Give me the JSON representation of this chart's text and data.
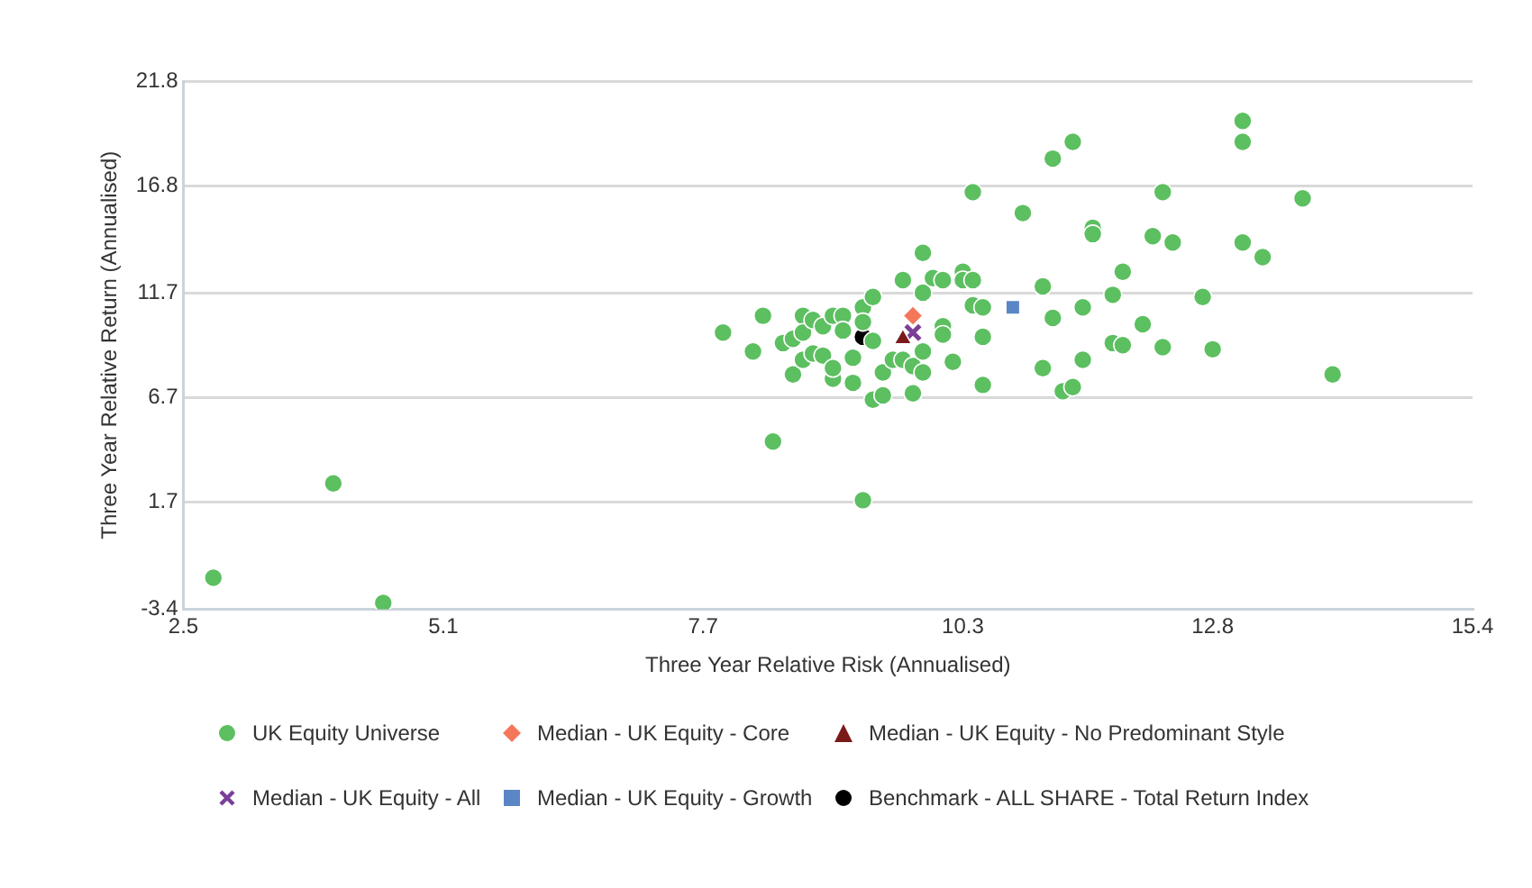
{
  "chart_data": {
    "type": "scatter",
    "xlabel": "Three Year Relative Risk (Annualised)",
    "ylabel": "Three Year Relative Return (Annualised)",
    "xlim": [
      2.5,
      15.4
    ],
    "xticks": [
      2.5,
      5.1,
      7.7,
      10.3,
      12.8,
      15.4
    ],
    "ylim": [
      -3.4,
      21.8
    ],
    "yticks": [
      -3.4,
      1.7,
      6.7,
      11.7,
      16.8,
      21.8
    ],
    "grid": "y",
    "legend": "bottom",
    "series": [
      {
        "name": "UK Equity Universe",
        "color": "#5cbf60",
        "marker": "circle",
        "x": [
          2.8,
          4.0,
          4.5,
          8.4,
          9.3,
          14.0,
          7.9,
          8.2,
          8.3,
          8.5,
          8.6,
          8.6,
          8.7,
          8.7,
          8.7,
          8.8,
          8.8,
          8.9,
          8.9,
          9.0,
          9.0,
          9.1,
          9.0,
          9.1,
          9.2,
          9.2,
          9.3,
          9.3,
          9.4,
          9.4,
          9.4,
          9.5,
          9.5,
          9.6,
          9.7,
          9.8,
          9.8,
          9.9,
          9.9,
          9.7,
          9.9,
          10.0,
          10.1,
          10.3,
          10.3,
          10.4,
          10.1,
          10.1,
          9.9,
          10.2,
          10.4,
          10.5,
          10.5,
          10.5,
          10.4,
          10.9,
          11.1,
          11.2,
          11.2,
          11.1,
          11.3,
          11.4,
          11.4,
          11.5,
          13.1,
          13.1,
          12.3,
          13.7,
          11.6,
          11.6,
          12.2,
          12.4,
          13.1,
          13.3,
          11.9,
          11.8,
          12.7,
          12.1,
          11.8,
          11.9,
          12.3,
          12.8,
          11.5
        ],
        "values": [
          -1.9,
          2.6,
          -3.1,
          4.6,
          1.8,
          7.8,
          9.8,
          8.9,
          10.6,
          9.3,
          9.5,
          7.8,
          10.6,
          9.8,
          8.5,
          8.8,
          10.4,
          10.1,
          8.7,
          7.6,
          10.6,
          10.6,
          8.1,
          9.9,
          8.6,
          7.4,
          11.0,
          10.3,
          9.4,
          11.5,
          6.6,
          6.8,
          7.9,
          8.5,
          8.5,
          8.2,
          6.9,
          8.9,
          13.6,
          12.3,
          11.7,
          12.4,
          12.3,
          12.7,
          12.3,
          12.3,
          10.1,
          9.7,
          7.9,
          8.4,
          11.1,
          11.0,
          9.6,
          7.3,
          16.5,
          15.5,
          12.0,
          18.1,
          10.5,
          8.1,
          7.0,
          7.2,
          18.9,
          11.0,
          19.9,
          18.9,
          16.5,
          16.2,
          14.8,
          14.5,
          14.4,
          14.1,
          14.1,
          13.4,
          12.7,
          11.6,
          11.5,
          10.2,
          9.3,
          9.2,
          9.1,
          9.0,
          8.5
        ]
      },
      {
        "name": "Median -  UK Equity - Core",
        "color": "#f4775a",
        "marker": "diamond",
        "x": [
          9.8
        ],
        "values": [
          10.6
        ]
      },
      {
        "name": "Median -  UK Equity - No Predominant Style",
        "color": "#7b1a1a",
        "marker": "triangle",
        "x": [
          9.7
        ],
        "values": [
          9.5
        ]
      },
      {
        "name": "Median -  UK Equity - All",
        "color": "#7b3f98",
        "marker": "cross",
        "x": [
          9.8
        ],
        "values": [
          9.8
        ]
      },
      {
        "name": "Median -  UK Equity - Growth",
        "color": "#5b86c6",
        "marker": "square",
        "x": [
          10.8
        ],
        "values": [
          11.0
        ]
      },
      {
        "name": "Benchmark - ALL SHARE - Total Return Index",
        "color": "#000000",
        "marker": "circle",
        "x": [
          9.3
        ],
        "values": [
          9.6
        ]
      }
    ]
  }
}
